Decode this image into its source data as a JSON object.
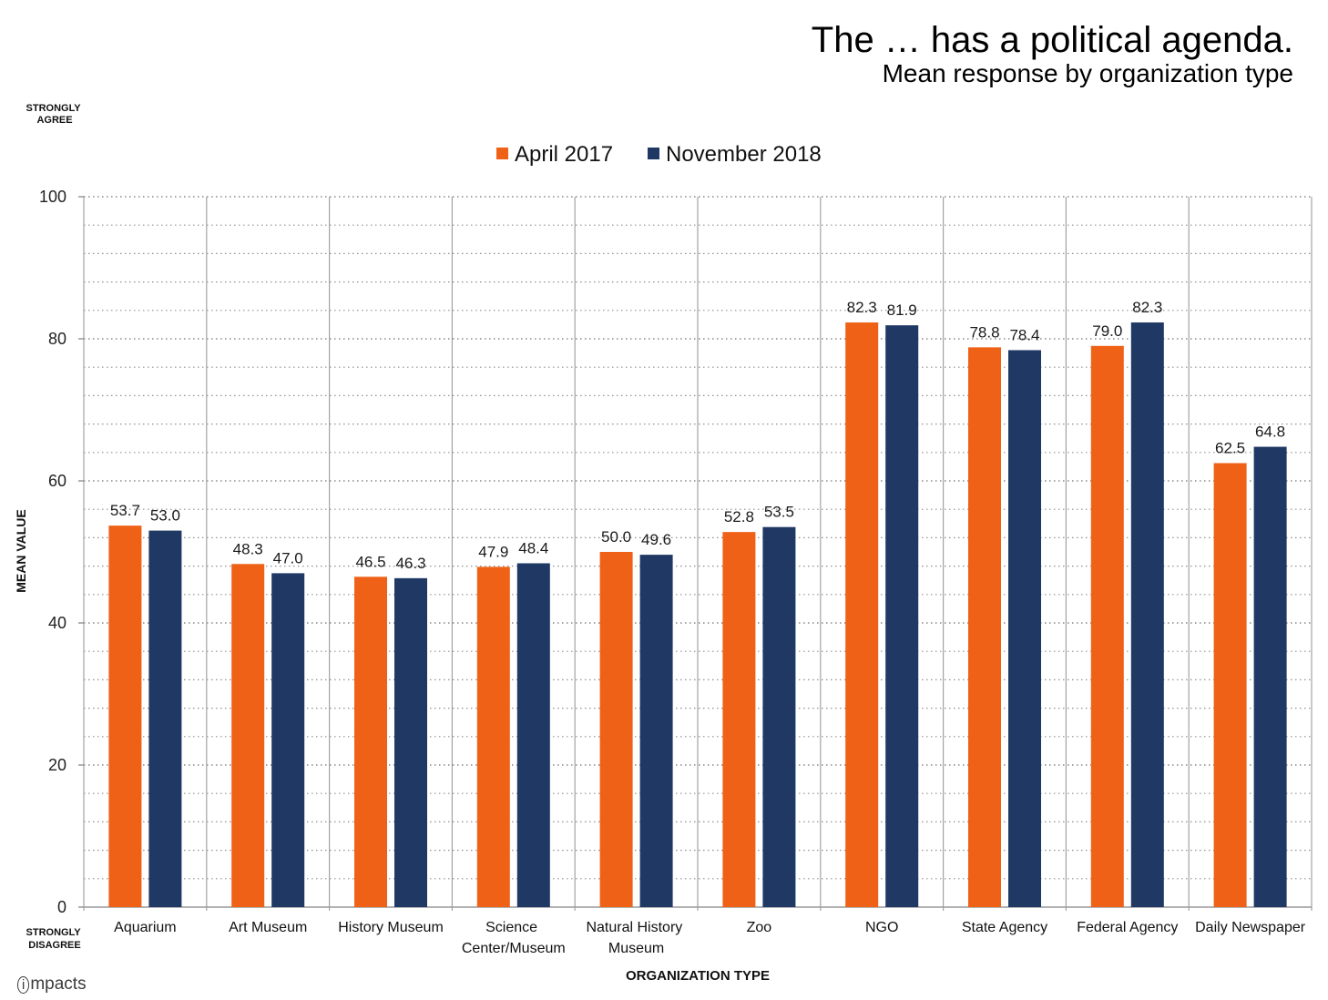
{
  "logo": "impacts",
  "chart_data": {
    "type": "bar",
    "title": "The … has a political agenda.",
    "subtitle": "Mean response by organization type",
    "xlabel": "ORGANIZATION TYPE",
    "ylabel": "MEAN VALUE",
    "y_max_note": "STRONGLY AGREE",
    "y_min_note": "STRONGLY DISAGREE",
    "ylim": [
      0,
      100
    ],
    "yticks": [
      0,
      20,
      40,
      60,
      80,
      100
    ],
    "minor_grid_step": 4,
    "grid": true,
    "legend": "top-center",
    "value_labels": true,
    "categories": [
      "Aquarium",
      "Art Museum",
      "History Museum",
      "Science Center/Museum",
      "Natural History Museum",
      "Zoo",
      "NGO",
      "State Agency",
      "Federal Agency",
      "Daily Newspaper"
    ],
    "series": [
      {
        "name": "April 2017",
        "color": "#EE6117",
        "values": [
          53.7,
          48.3,
          46.5,
          47.9,
          50.0,
          52.8,
          82.3,
          78.8,
          79.0,
          62.5
        ]
      },
      {
        "name": "November 2018",
        "color": "#1F3864",
        "values": [
          53.0,
          47.0,
          46.3,
          48.4,
          49.6,
          53.5,
          81.9,
          78.4,
          82.3,
          64.8
        ]
      }
    ]
  }
}
